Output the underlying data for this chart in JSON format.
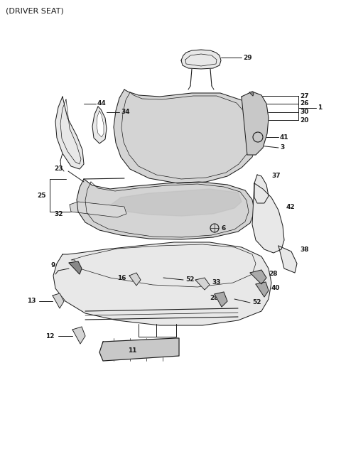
{
  "title": "(DRIVER SEAT)",
  "bg_color": "#ffffff",
  "line_color": "#1a1a1a",
  "gray_fill": "#d4d4d4",
  "gray_fill2": "#e8e8e8",
  "gray_dark": "#b0b0b0",
  "figsize": [
    4.8,
    6.56
  ],
  "dpi": 100,
  "label_fontsize": 6.5,
  "title_fontsize": 8
}
